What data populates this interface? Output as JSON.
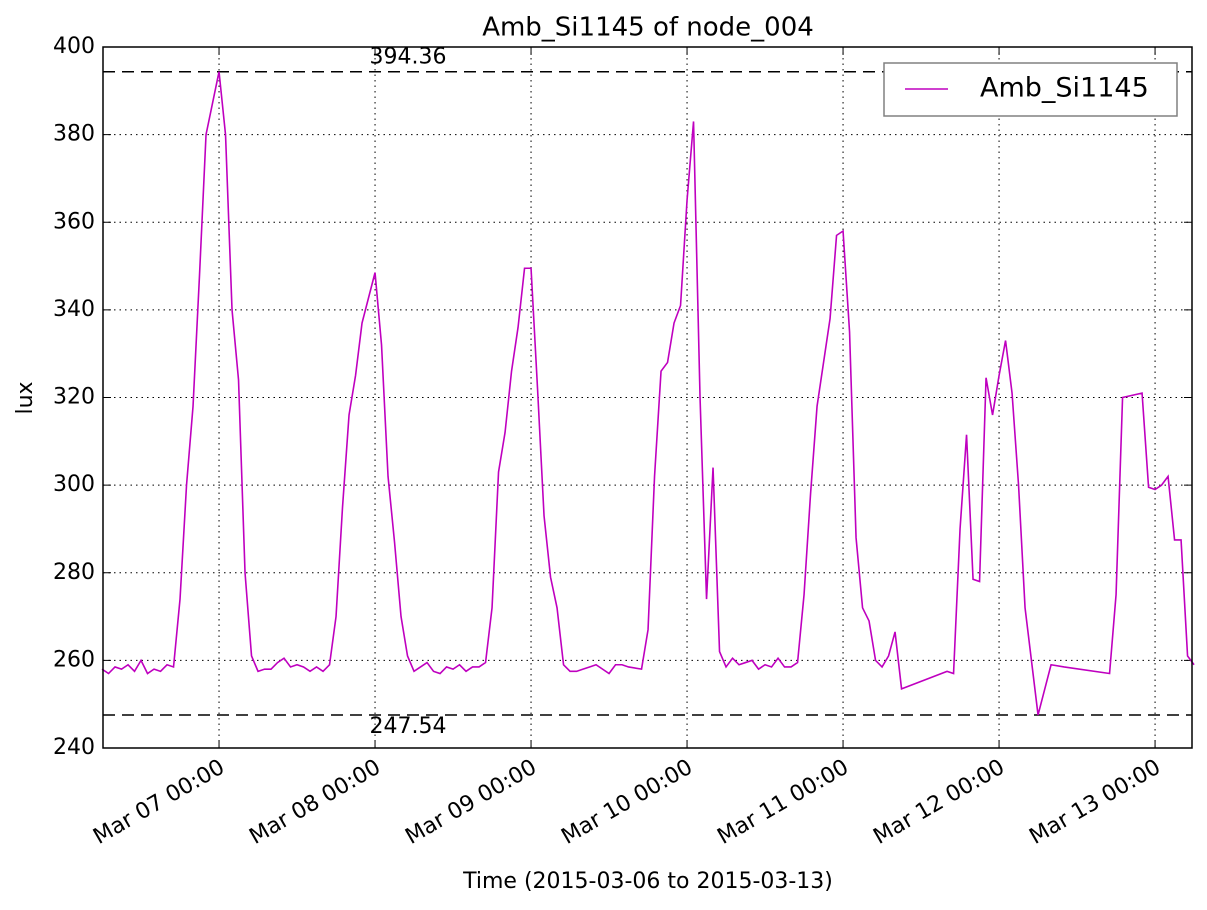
{
  "chart_data": {
    "type": "line",
    "title": "Amb_Si1145 of node_004",
    "xlabel": "Time (2015-03-06 to 2015-03-13)",
    "ylabel": "lux",
    "x": [
      "2015-03-06 06:00",
      "2015-03-06 07:00",
      "2015-03-06 08:00",
      "2015-03-06 09:00",
      "2015-03-06 10:00",
      "2015-03-06 11:00",
      "2015-03-06 12:00",
      "2015-03-06 13:00",
      "2015-03-06 14:00",
      "2015-03-06 15:00",
      "2015-03-06 16:00",
      "2015-03-06 17:00",
      "2015-03-06 18:00",
      "2015-03-06 19:00",
      "2015-03-06 20:00",
      "2015-03-06 21:00",
      "2015-03-06 22:00",
      "2015-03-07 00:00",
      "2015-03-07 01:00",
      "2015-03-07 02:00",
      "2015-03-07 03:00",
      "2015-03-07 04:00",
      "2015-03-07 05:00",
      "2015-03-07 06:00",
      "2015-03-07 07:00",
      "2015-03-07 08:00",
      "2015-03-07 09:00",
      "2015-03-07 10:00",
      "2015-03-07 11:00",
      "2015-03-07 12:00",
      "2015-03-07 13:00",
      "2015-03-07 14:00",
      "2015-03-07 15:00",
      "2015-03-07 16:00",
      "2015-03-07 17:00",
      "2015-03-07 18:00",
      "2015-03-07 19:00",
      "2015-03-07 20:00",
      "2015-03-07 21:00",
      "2015-03-07 22:00",
      "2015-03-08 00:00",
      "2015-03-08 01:00",
      "2015-03-08 02:00",
      "2015-03-08 03:00",
      "2015-03-08 04:00",
      "2015-03-08 05:00",
      "2015-03-08 06:00",
      "2015-03-08 07:00",
      "2015-03-08 08:00",
      "2015-03-08 09:00",
      "2015-03-08 10:00",
      "2015-03-08 11:00",
      "2015-03-08 12:00",
      "2015-03-08 13:00",
      "2015-03-08 14:00",
      "2015-03-08 15:00",
      "2015-03-08 16:00",
      "2015-03-08 17:00",
      "2015-03-08 18:00",
      "2015-03-08 19:00",
      "2015-03-08 20:00",
      "2015-03-08 21:00",
      "2015-03-08 22:00",
      "2015-03-08 23:00",
      "2015-03-09 00:00",
      "2015-03-09 01:00",
      "2015-03-09 02:00",
      "2015-03-09 03:00",
      "2015-03-09 04:00",
      "2015-03-09 05:00",
      "2015-03-09 06:00",
      "2015-03-09 07:00",
      "2015-03-09 08:00",
      "2015-03-09 09:00",
      "2015-03-09 10:00",
      "2015-03-09 11:00",
      "2015-03-09 12:00",
      "2015-03-09 13:00",
      "2015-03-09 14:00",
      "2015-03-09 15:00",
      "2015-03-09 17:00",
      "2015-03-09 18:00",
      "2015-03-09 19:00",
      "2015-03-09 20:00",
      "2015-03-09 21:00",
      "2015-03-09 22:00",
      "2015-03-09 23:00",
      "2015-03-10 00:00",
      "2015-03-10 01:00",
      "2015-03-10 02:00",
      "2015-03-10 03:00",
      "2015-03-10 04:00",
      "2015-03-10 05:00",
      "2015-03-10 06:00",
      "2015-03-10 07:00",
      "2015-03-10 08:00",
      "2015-03-10 09:00",
      "2015-03-10 10:00",
      "2015-03-10 11:00",
      "2015-03-10 12:00",
      "2015-03-10 13:00",
      "2015-03-10 14:00",
      "2015-03-10 15:00",
      "2015-03-10 16:00",
      "2015-03-10 17:00",
      "2015-03-10 18:00",
      "2015-03-10 19:00",
      "2015-03-10 20:00",
      "2015-03-10 22:00",
      "2015-03-10 23:00",
      "2015-03-11 00:00",
      "2015-03-11 01:00",
      "2015-03-11 02:00",
      "2015-03-11 03:00",
      "2015-03-11 04:00",
      "2015-03-11 05:00",
      "2015-03-11 06:00",
      "2015-03-11 07:00",
      "2015-03-11 08:00",
      "2015-03-11 09:00",
      "2015-03-11 16:00",
      "2015-03-11 17:00",
      "2015-03-11 18:00",
      "2015-03-11 19:00",
      "2015-03-11 20:00",
      "2015-03-11 21:00",
      "2015-03-11 22:00",
      "2015-03-11 23:00",
      "2015-03-12 00:00",
      "2015-03-12 01:00",
      "2015-03-12 02:00",
      "2015-03-12 03:00",
      "2015-03-12 04:00",
      "2015-03-12 06:00",
      "2015-03-12 08:00",
      "2015-03-12 10:00",
      "2015-03-12 17:00",
      "2015-03-12 18:00",
      "2015-03-12 19:00",
      "2015-03-12 22:00",
      "2015-03-12 23:00",
      "2015-03-13 00:00",
      "2015-03-13 01:00",
      "2015-03-13 02:00",
      "2015-03-13 03:00",
      "2015-03-13 04:00",
      "2015-03-13 05:00",
      "2015-03-13 06:00"
    ],
    "series": [
      {
        "name": "Amb_Si1145",
        "color": "#bf00bf",
        "values": [
          258,
          257,
          258.5,
          258,
          259,
          257.5,
          260,
          257,
          258,
          257.5,
          259,
          258.5,
          274,
          300,
          318,
          348,
          380,
          394.36,
          380,
          340,
          324,
          280,
          261,
          257.5,
          258,
          258,
          259.5,
          260.5,
          258.5,
          259,
          258.5,
          257.5,
          258.5,
          257.5,
          259,
          270,
          295,
          316,
          325,
          337,
          348.5,
          332,
          302,
          287,
          270,
          261,
          257.5,
          258.5,
          259.5,
          257.5,
          257,
          258.5,
          258,
          259,
          257.5,
          258.5,
          258.5,
          259.5,
          272,
          303,
          312,
          326,
          336,
          349.5,
          349.5,
          322,
          293,
          279,
          272,
          259,
          257.5,
          257.5,
          258,
          258.5,
          259,
          258,
          257,
          259,
          259,
          258.5,
          258,
          267,
          302,
          326,
          328,
          337,
          341,
          365,
          383,
          320,
          274,
          304,
          262,
          258.5,
          260.5,
          259,
          259.5,
          260,
          258,
          259,
          258.5,
          260.5,
          258.5,
          258.5,
          259.5,
          275,
          298,
          318,
          338,
          357,
          358,
          335,
          288,
          272,
          269,
          260,
          258.5,
          261,
          266.5,
          253.5,
          257.5,
          257,
          290,
          311.5,
          278.5,
          278,
          324.5,
          316,
          325,
          333,
          321,
          300,
          272,
          247.54,
          259,
          258.5,
          257,
          275,
          320,
          321,
          299.5,
          299,
          300,
          302,
          287.5,
          287.5,
          261,
          259
        ]
      }
    ],
    "xlim": [
      "2015-03-06 06:09",
      "2015-03-13 05:41"
    ],
    "ylim": [
      240,
      400
    ],
    "xticks": [
      {
        "value": "2015-03-07 00:00",
        "label": "Mar 07 00:00"
      },
      {
        "value": "2015-03-08 00:00",
        "label": "Mar 08 00:00"
      },
      {
        "value": "2015-03-09 00:00",
        "label": "Mar 09 00:00"
      },
      {
        "value": "2015-03-10 00:00",
        "label": "Mar 10 00:00"
      },
      {
        "value": "2015-03-11 00:00",
        "label": "Mar 11 00:00"
      },
      {
        "value": "2015-03-12 00:00",
        "label": "Mar 12 00:00"
      },
      {
        "value": "2015-03-13 00:00",
        "label": "Mar 13 00:00"
      }
    ],
    "yticks": [
      240,
      260,
      280,
      300,
      320,
      340,
      360,
      380,
      400
    ],
    "grid": true,
    "legend": "upper right",
    "hlines": [
      394.36,
      247.54
    ]
  }
}
